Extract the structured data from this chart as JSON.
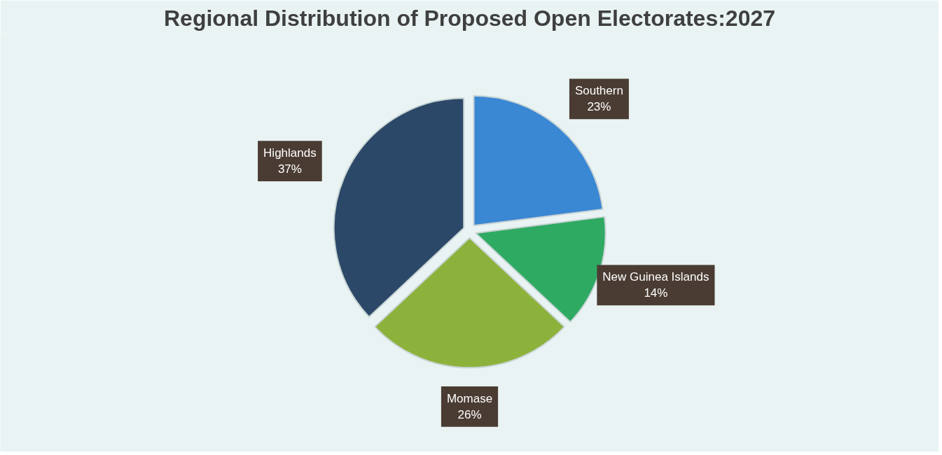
{
  "chart_data": {
    "type": "pie",
    "title": "Regional Distribution of Proposed Open Electorates:2027",
    "categories": [
      "Southern",
      "New Guinea Islands",
      "Momase",
      "Highlands"
    ],
    "values": [
      23,
      14,
      26,
      37
    ],
    "colors": [
      "#3a87d4",
      "#2faa63",
      "#8db23c",
      "#2c4868"
    ],
    "value_labels": [
      "23%",
      "14%",
      "26%",
      "37%"
    ]
  }
}
